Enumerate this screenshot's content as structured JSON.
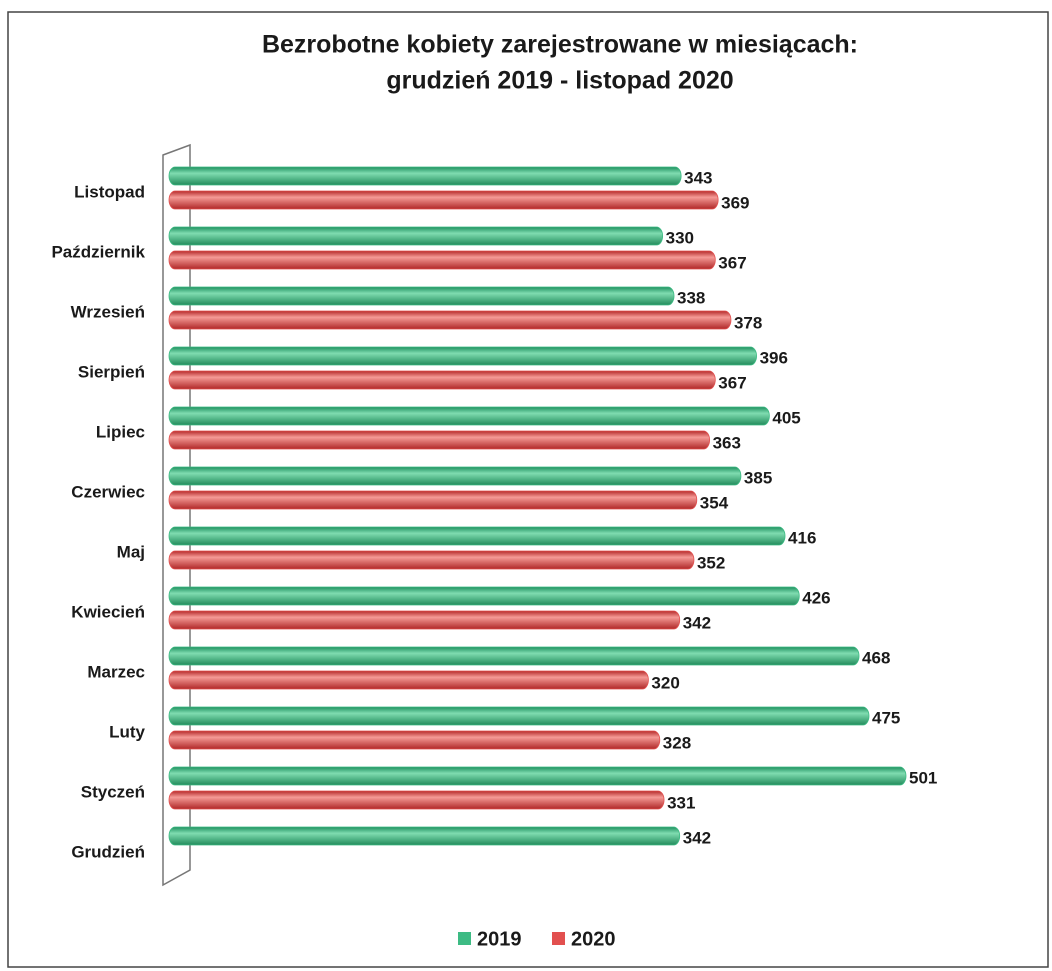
{
  "chart_data": {
    "type": "bar",
    "orientation": "horizontal",
    "title": [
      "Bezrobotne kobiety zarejestrowane w miesiącach:",
      "grudzień 2019 - listopad 2020"
    ],
    "categories": [
      "Listopad",
      "Październik",
      "Wrzesień",
      "Sierpień",
      "Lipiec",
      "Czerwiec",
      "Maj",
      "Kwiecień",
      "Marzec",
      "Luty",
      "Styczeń",
      "Grudzień"
    ],
    "series": [
      {
        "name": "2019",
        "color": "#3dbb84",
        "values": [
          343,
          330,
          338,
          396,
          405,
          385,
          416,
          426,
          468,
          475,
          501,
          342
        ]
      },
      {
        "name": "2020",
        "color": "#e2504f",
        "values": [
          369,
          367,
          378,
          367,
          363,
          354,
          352,
          342,
          320,
          328,
          331,
          null
        ]
      }
    ]
  }
}
